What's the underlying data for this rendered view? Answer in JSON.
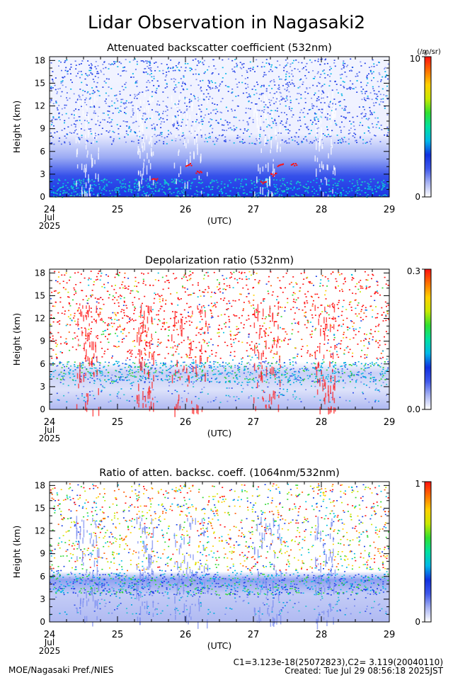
{
  "title": "Lidar Observation in Nagasaki2",
  "footer": {
    "left": "MOE/Nagasaki Pref./NIES",
    "calib": "C1=3.123e-18(25072823),C2= 3.119(20040110)",
    "created": "Created: Tue Jul 29 08:56:18 2025JST"
  },
  "colorbar_colors": [
    "#ffffff",
    "#a9b4f2",
    "#3f58ea",
    "#1030e0",
    "#00b8e8",
    "#00e0a0",
    "#30e030",
    "#c8e800",
    "#ffd000",
    "#ff7000",
    "#ff1010"
  ],
  "chart_data": [
    {
      "type": "heatmap",
      "title": "Attenuated backscatter coefficient (532nm)",
      "ylabel": "Height (km)",
      "xlabel": "(UTC)",
      "x_ticks": [
        "24",
        "25",
        "26",
        "27",
        "28",
        "29"
      ],
      "x_sub": [
        "Jul",
        "2025"
      ],
      "xlim": [
        24,
        29
      ],
      "y_ticks": [
        "0",
        "3",
        "6",
        "9",
        "12",
        "15",
        "18"
      ],
      "ylim": [
        0,
        18.5
      ],
      "cbar_min": "0",
      "cbar_max": "10",
      "cbar_exp": "-6",
      "cbar_unit": "(/m/sr)",
      "pattern": "backscatter"
    },
    {
      "type": "heatmap",
      "title": "Depolarization ratio (532nm)",
      "ylabel": "Height (km)",
      "xlabel": "(UTC)",
      "x_ticks": [
        "24",
        "25",
        "26",
        "27",
        "28",
        "29"
      ],
      "x_sub": [
        "Jul",
        "2025"
      ],
      "xlim": [
        24,
        29
      ],
      "y_ticks": [
        "0",
        "3",
        "6",
        "9",
        "12",
        "15",
        "18"
      ],
      "ylim": [
        0,
        18.5
      ],
      "cbar_min": "0.0",
      "cbar_max": "0.3",
      "cbar_exp": "",
      "cbar_unit": "",
      "pattern": "depol"
    },
    {
      "type": "heatmap",
      "title": "Ratio of atten. backsc. coeff. (1064nm/532nm)",
      "ylabel": "Height (km)",
      "xlabel": "(UTC)",
      "x_ticks": [
        "24",
        "25",
        "26",
        "27",
        "28",
        "29"
      ],
      "x_sub": [
        "Jul",
        "2025"
      ],
      "xlim": [
        24,
        29
      ],
      "y_ticks": [
        "0",
        "3",
        "6",
        "9",
        "12",
        "15",
        "18"
      ],
      "ylim": [
        0,
        18.5
      ],
      "cbar_min": "0",
      "cbar_max": "1",
      "cbar_exp": "",
      "cbar_unit": "",
      "pattern": "ratio"
    }
  ]
}
